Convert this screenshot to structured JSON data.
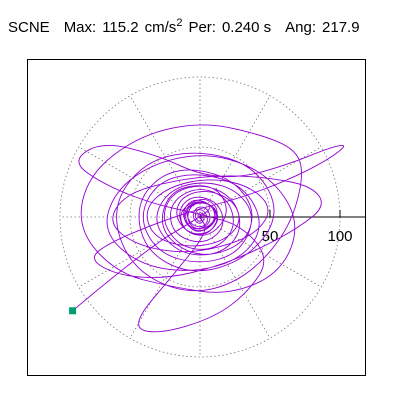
{
  "header": {
    "station": "SCNE",
    "max_label": "Max:",
    "max_value": "115.2",
    "max_unit": "cm/s",
    "max_unit_exp": "2",
    "per_label": "Per:",
    "per_value": "0.240 s",
    "ang_label": "Ang:",
    "ang_value": "217.9"
  },
  "colors": {
    "trace": "#9400D3",
    "start_marker": "#009E73",
    "grid": "#777777",
    "axis": "#000000"
  },
  "chart_data": {
    "type": "polar-particle-motion",
    "units": "cm/s^2",
    "max_amplitude": 115.2,
    "angle_deg": 217.9,
    "period_s": 0.24,
    "radial_ticks": [
      50,
      100
    ],
    "radial_tick_labels": [
      "50",
      "100"
    ],
    "grid_rings": [
      50,
      100
    ],
    "spoke_angles_deg": [
      0,
      30,
      60,
      90,
      120,
      150,
      180,
      210,
      240,
      270,
      300,
      330
    ],
    "start_point": [
      -91,
      -67
    ],
    "trace": [
      [
        -91,
        -67
      ],
      [
        -40,
        -24
      ],
      [
        0,
        0
      ],
      [
        10,
        8
      ],
      [
        -5,
        14
      ],
      [
        -14,
        2
      ],
      [
        -5,
        -10
      ],
      [
        9,
        -6
      ],
      [
        12,
        4
      ],
      [
        3,
        12
      ],
      [
        -10,
        8
      ],
      [
        -12,
        -4
      ],
      [
        0,
        -12
      ],
      [
        12,
        -2
      ],
      [
        8,
        10
      ],
      [
        -6,
        10
      ],
      [
        -12,
        0
      ],
      [
        -4,
        -12
      ],
      [
        9,
        -7
      ],
      [
        14,
        6
      ],
      [
        2,
        15
      ],
      [
        -16,
        4
      ],
      [
        -10,
        -12
      ],
      [
        8,
        -14
      ],
      [
        22,
        4
      ],
      [
        10,
        24
      ],
      [
        -22,
        20
      ],
      [
        -30,
        -10
      ],
      [
        -2,
        -30
      ],
      [
        32,
        -20
      ],
      [
        40,
        6
      ],
      [
        20,
        30
      ],
      [
        -20,
        36
      ],
      [
        -46,
        12
      ],
      [
        -40,
        -24
      ],
      [
        -6,
        -42
      ],
      [
        34,
        -30
      ],
      [
        58,
        2
      ],
      [
        40,
        36
      ],
      [
        0,
        48
      ],
      [
        -40,
        40
      ],
      [
        -64,
        6
      ],
      [
        -50,
        -36
      ],
      [
        -10,
        -56
      ],
      [
        30,
        -46
      ],
      [
        62,
        -12
      ],
      [
        74,
        26
      ],
      [
        70,
        48
      ],
      [
        40,
        60
      ],
      [
        0,
        68
      ],
      [
        -44,
        58
      ],
      [
        -80,
        30
      ],
      [
        -88,
        -8
      ],
      [
        -60,
        -40
      ],
      [
        -20,
        -50
      ],
      [
        20,
        -56
      ],
      [
        58,
        -40
      ],
      [
        72,
        -4
      ],
      [
        50,
        30
      ],
      [
        10,
        46
      ],
      [
        -30,
        40
      ],
      [
        -60,
        20
      ],
      [
        -70,
        -10
      ],
      [
        -44,
        -34
      ],
      [
        -6,
        -40
      ],
      [
        30,
        -30
      ],
      [
        46,
        -6
      ],
      [
        32,
        22
      ],
      [
        0,
        32
      ],
      [
        -30,
        26
      ],
      [
        -44,
        0
      ],
      [
        -30,
        -26
      ],
      [
        0,
        -34
      ],
      [
        28,
        -26
      ],
      [
        40,
        0
      ],
      [
        26,
        20
      ],
      [
        0,
        26
      ],
      [
        -24,
        18
      ],
      [
        -34,
        -4
      ],
      [
        -16,
        -26
      ],
      [
        12,
        -28
      ],
      [
        30,
        -12
      ],
      [
        26,
        12
      ],
      [
        4,
        24
      ],
      [
        -20,
        18
      ],
      [
        -28,
        -2
      ],
      [
        -14,
        -22
      ],
      [
        10,
        -24
      ],
      [
        26,
        -8
      ],
      [
        20,
        14
      ],
      [
        -2,
        22
      ],
      [
        -22,
        10
      ],
      [
        -20,
        -12
      ],
      [
        2,
        -20
      ],
      [
        18,
        -8
      ],
      [
        14,
        10
      ],
      [
        -4,
        16
      ],
      [
        -16,
        6
      ],
      [
        -12,
        -10
      ],
      [
        4,
        -14
      ],
      [
        14,
        -2
      ],
      [
        8,
        10
      ],
      [
        -6,
        10
      ],
      [
        -10,
        -2
      ],
      [
        -2,
        -10
      ],
      [
        8,
        -4
      ],
      [
        6,
        6
      ],
      [
        -2,
        8
      ],
      [
        -6,
        0
      ],
      [
        0,
        -6
      ],
      [
        4,
        0
      ],
      [
        0,
        4
      ],
      [
        -2,
        0
      ],
      [
        0,
        0
      ],
      [
        6,
        -10
      ],
      [
        -18,
        -40
      ],
      [
        -50,
        -78
      ],
      [
        -30,
        -84
      ],
      [
        10,
        -72
      ],
      [
        34,
        -54
      ],
      [
        50,
        -30
      ],
      [
        30,
        -6
      ],
      [
        0,
        2
      ],
      [
        -36,
        10
      ],
      [
        -70,
        24
      ],
      [
        -92,
        40
      ],
      [
        -70,
        54
      ],
      [
        -30,
        44
      ],
      [
        0,
        30
      ],
      [
        30,
        28
      ],
      [
        64,
        38
      ],
      [
        94,
        50
      ],
      [
        106,
        52
      ],
      [
        90,
        40
      ],
      [
        62,
        26
      ],
      [
        30,
        14
      ],
      [
        0,
        6
      ],
      [
        -30,
        -4
      ],
      [
        -64,
        -18
      ],
      [
        -80,
        -30
      ],
      [
        -58,
        -42
      ],
      [
        -24,
        -44
      ],
      [
        10,
        -36
      ],
      [
        40,
        -24
      ],
      [
        70,
        -8
      ],
      [
        90,
        8
      ],
      [
        80,
        22
      ],
      [
        50,
        28
      ],
      [
        16,
        30
      ],
      [
        -20,
        26
      ],
      [
        -54,
        16
      ],
      [
        -66,
        -4
      ],
      [
        -46,
        -20
      ],
      [
        -14,
        -26
      ],
      [
        14,
        -22
      ],
      [
        40,
        -12
      ],
      [
        52,
        6
      ],
      [
        36,
        22
      ],
      [
        8,
        28
      ],
      [
        -22,
        22
      ],
      [
        -40,
        6
      ],
      [
        -34,
        -14
      ],
      [
        -10,
        -22
      ],
      [
        16,
        -18
      ],
      [
        30,
        -4
      ],
      [
        24,
        12
      ],
      [
        4,
        20
      ],
      [
        -14,
        14
      ],
      [
        -18,
        0
      ],
      [
        -8,
        -12
      ],
      [
        6,
        -12
      ],
      [
        14,
        -2
      ],
      [
        10,
        8
      ],
      [
        -2,
        12
      ],
      [
        -10,
        6
      ],
      [
        -8,
        -4
      ],
      [
        0,
        -8
      ],
      [
        6,
        -4
      ],
      [
        4,
        4
      ],
      [
        -2,
        6
      ],
      [
        -4,
        0
      ],
      [
        0,
        -4
      ],
      [
        2,
        0
      ],
      [
        0,
        2
      ],
      [
        0,
        0
      ]
    ]
  }
}
